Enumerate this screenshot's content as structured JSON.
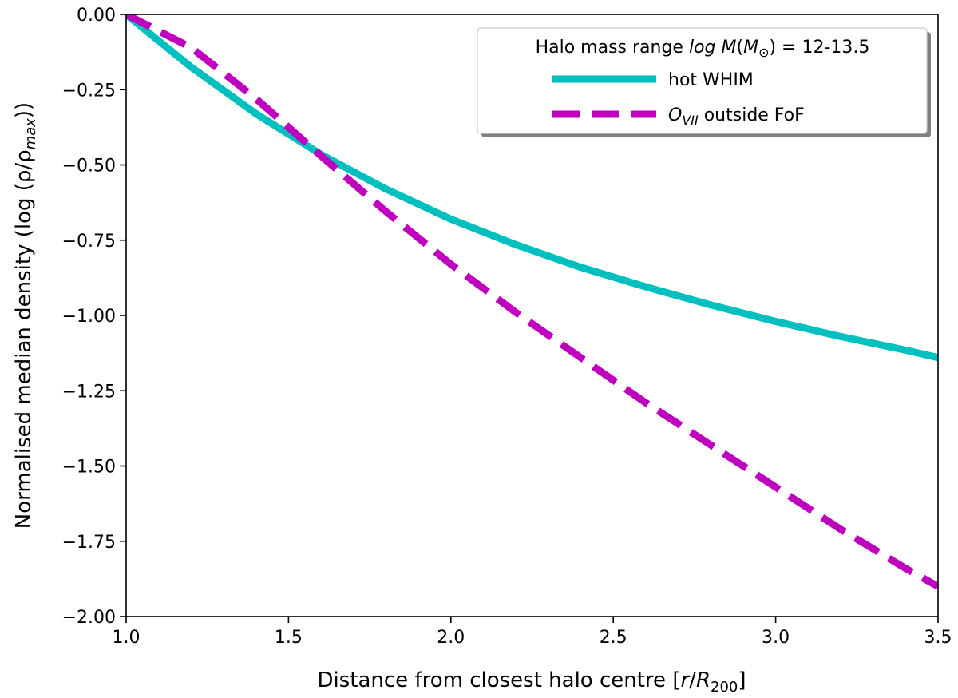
{
  "chart_data": {
    "type": "line",
    "title": "",
    "xlabel": {
      "prefix": "Distance from closest halo centre [",
      "var": "r",
      "sep": "/",
      "var2": "R",
      "sub": "200",
      "suffix": "]"
    },
    "ylabel": {
      "prefix": "Normalised median density (log (ρ/ρ",
      "sub": "max",
      "suffix": "))"
    },
    "xlim": [
      1.0,
      3.5
    ],
    "ylim": [
      -2.0,
      0.0
    ],
    "xticks": [
      1.0,
      1.5,
      2.0,
      2.5,
      3.0,
      3.5
    ],
    "xtick_labels": [
      "1.0",
      "1.5",
      "2.0",
      "2.5",
      "3.0",
      "3.5"
    ],
    "yticks": [
      0.0,
      -0.25,
      -0.5,
      -0.75,
      -1.0,
      -1.25,
      -1.5,
      -1.75,
      -2.0
    ],
    "ytick_labels": [
      "0.00",
      "−0.25",
      "−0.50",
      "−0.75",
      "−1.00",
      "−1.25",
      "−1.50",
      "−1.75",
      "−2.00"
    ],
    "grid": false,
    "legend": {
      "placement": "top-right",
      "title": {
        "prefix": "Halo mass range ",
        "italic": "log M",
        "open": "(",
        "m": "M",
        "sub": "⊙",
        "close": ")",
        "suffix": " = 12-13.5"
      },
      "entries": [
        {
          "label": "hot WHIM",
          "style": "solid",
          "color": "#00bfbf"
        },
        {
          "label_main": "O",
          "label_sub": "VII",
          "label_rest": " outside FoF",
          "style": "dashed",
          "color": "#bf00bf"
        }
      ]
    },
    "series": [
      {
        "name": "hot WHIM",
        "color": "#00bfbf",
        "style": "solid",
        "x": [
          1.0,
          1.2,
          1.4,
          1.6,
          1.8,
          2.0,
          2.2,
          2.4,
          2.6,
          2.8,
          3.0,
          3.2,
          3.4,
          3.5
        ],
        "y": [
          0.0,
          -0.175,
          -0.33,
          -0.465,
          -0.58,
          -0.68,
          -0.765,
          -0.84,
          -0.905,
          -0.965,
          -1.02,
          -1.07,
          -1.115,
          -1.14
        ]
      },
      {
        "name": "O_VII outside FoF",
        "color": "#bf00bf",
        "style": "dashed",
        "x": [
          1.0,
          1.2,
          1.4,
          1.6,
          1.8,
          2.0,
          2.2,
          2.4,
          2.6,
          2.8,
          3.0,
          3.2,
          3.4,
          3.5
        ],
        "y": [
          0.0,
          -0.11,
          -0.28,
          -0.47,
          -0.655,
          -0.83,
          -0.99,
          -1.14,
          -1.29,
          -1.43,
          -1.57,
          -1.71,
          -1.84,
          -1.9
        ]
      }
    ]
  }
}
